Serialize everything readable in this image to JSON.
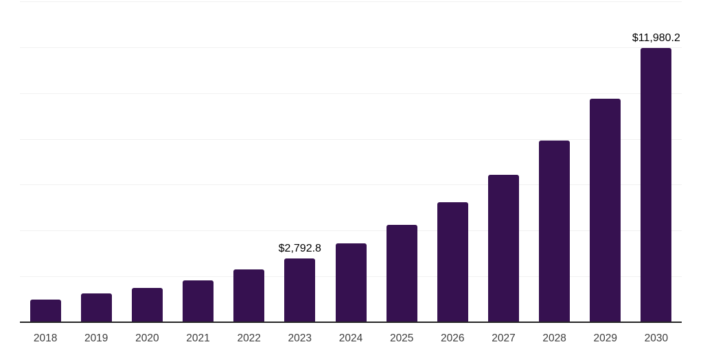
{
  "chart_data": {
    "type": "bar",
    "title": "",
    "xlabel": "",
    "ylabel": "",
    "categories": [
      "2018",
      "2019",
      "2020",
      "2021",
      "2022",
      "2023",
      "2024",
      "2025",
      "2026",
      "2027",
      "2028",
      "2029",
      "2030"
    ],
    "values": [
      1000,
      1250,
      1510,
      1840,
      2310,
      2792.8,
      3440,
      4260,
      5230,
      6440,
      7920,
      9740,
      11980.2
    ],
    "values_note": "only 2023 and 2030 carry visible data labels; other values estimated from gridlines",
    "labeled_points": [
      {
        "category": "2023",
        "label": "$2,792.8"
      },
      {
        "category": "2030",
        "label": "$11,980.2"
      }
    ],
    "ylim": [
      0,
      14000
    ],
    "gridline_step": 2000,
    "grid": "horizontal-only",
    "legend": "none",
    "bar_color": "#361150",
    "gridline_color": "#f1f1f1",
    "axis_line_color": "#262626",
    "x_label_color": "#3d3d3d",
    "data_label_color": "#000000",
    "background_color": "#ffffff"
  }
}
